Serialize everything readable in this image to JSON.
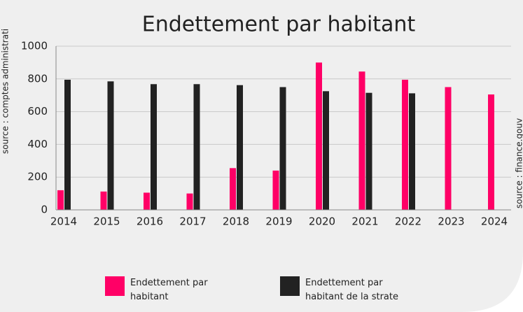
{
  "chart_data": {
    "type": "bar",
    "title": "Endettement par habitant",
    "categories": [
      "2014",
      "2015",
      "2016",
      "2017",
      "2018",
      "2019",
      "2020",
      "2021",
      "2022",
      "2023",
      "2024"
    ],
    "series": [
      {
        "name": "Endettement par habitant",
        "color": "#ff0066",
        "values": [
          120,
          112,
          105,
          100,
          255,
          240,
          900,
          845,
          795,
          750,
          705
        ]
      },
      {
        "name": "Endettement par habitant de la strate",
        "color": "#222222",
        "values": [
          795,
          785,
          768,
          768,
          762,
          750,
          725,
          715,
          712,
          null,
          null
        ]
      }
    ],
    "ylim": [
      0,
      1000
    ],
    "yticks": [
      0,
      200,
      400,
      600,
      800,
      1000
    ],
    "grid": true,
    "source_left": "source : comptes administrati",
    "source_right": "source : finance.gouv"
  }
}
